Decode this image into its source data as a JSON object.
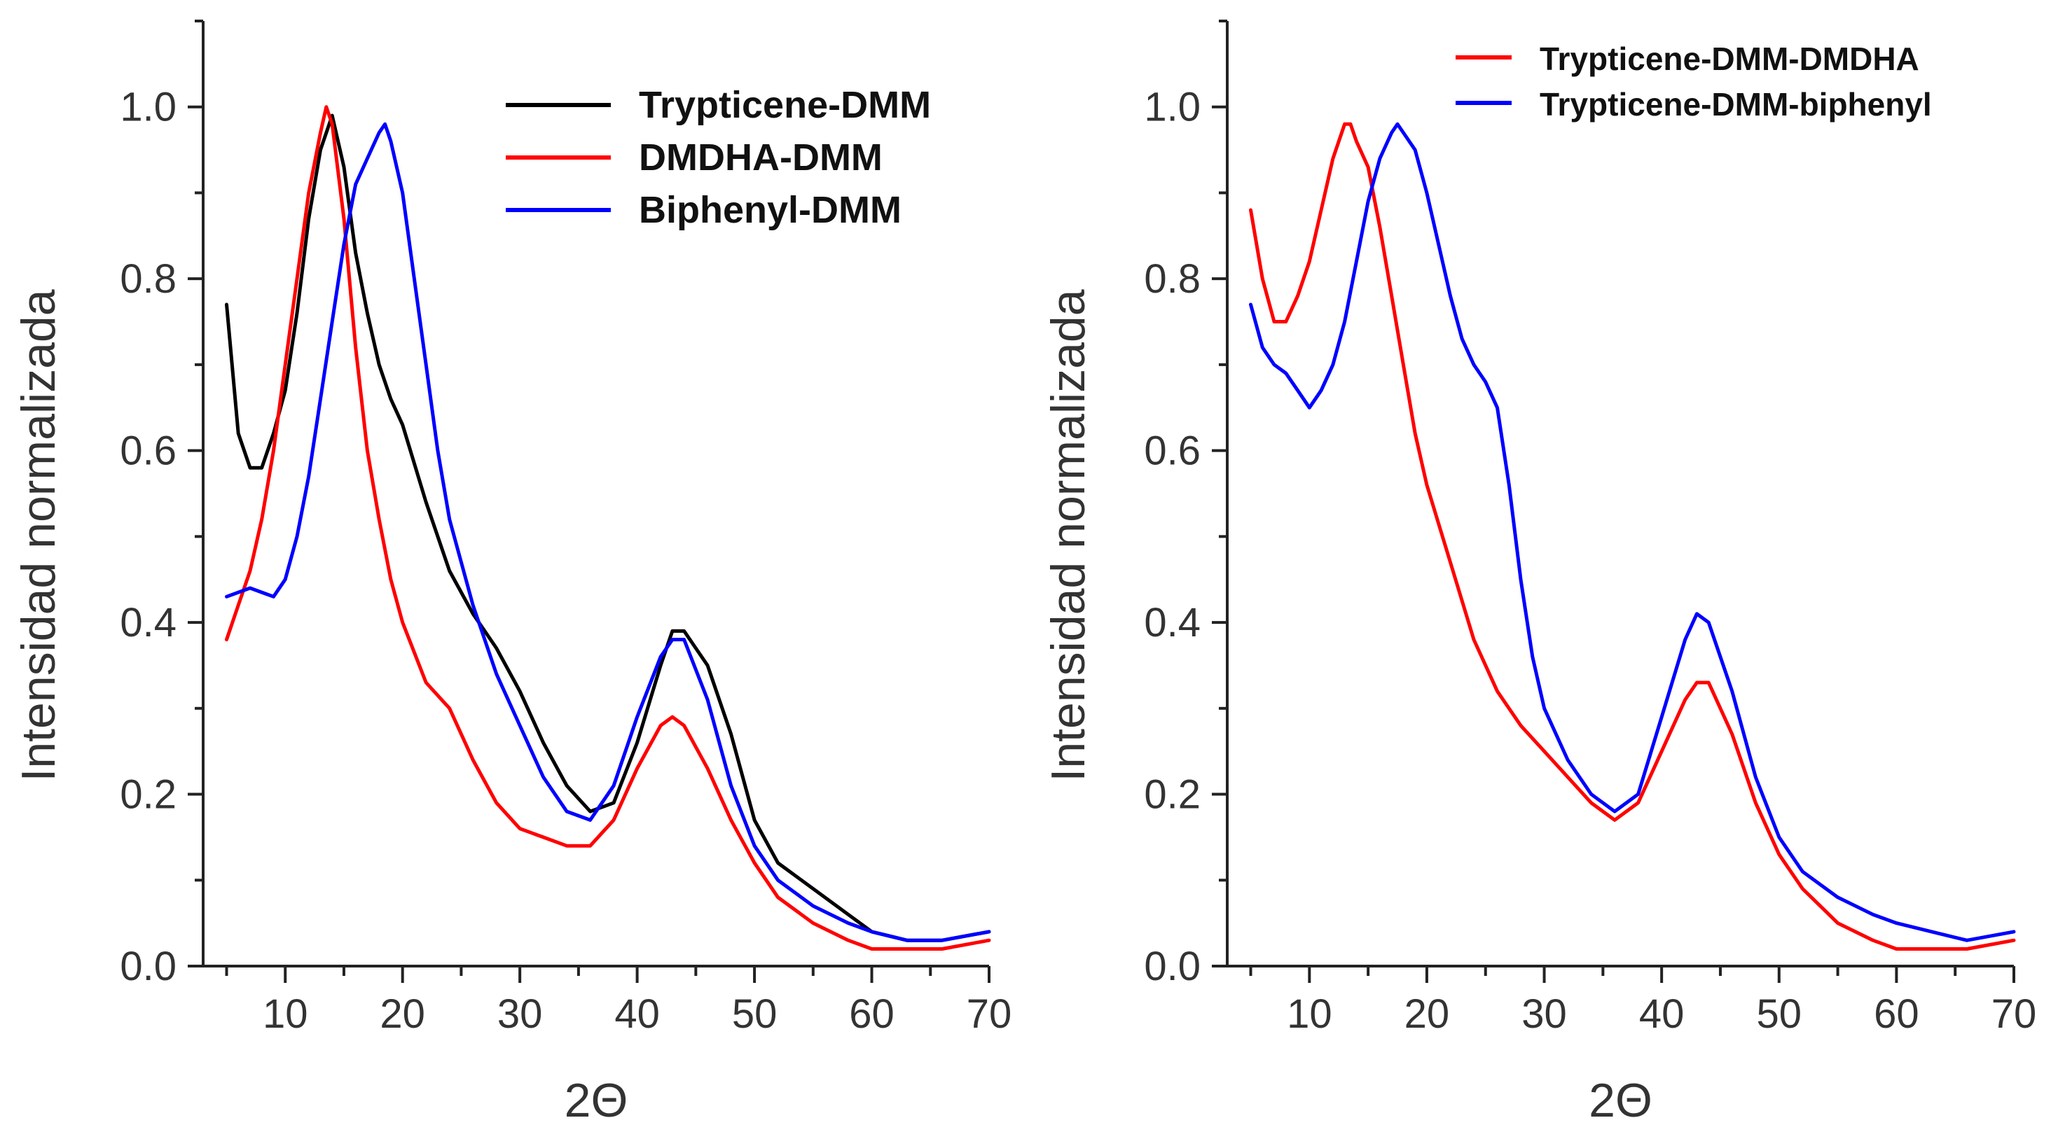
{
  "chart_data": [
    {
      "type": "line",
      "title": "",
      "xlabel": "2Θ",
      "ylabel": "Intensidad normalizada",
      "xlim": [
        3,
        70
      ],
      "ylim": [
        0,
        1.1
      ],
      "xticks": [
        "10",
        "20",
        "30",
        "40",
        "50",
        "60",
        "70"
      ],
      "yticks": [
        "0.0",
        "0.2",
        "0.4",
        "0.6",
        "0.8",
        "1.0"
      ],
      "legend_position": "top-right",
      "series": [
        {
          "name": "Trypticene-DMM",
          "color": "#000000",
          "x": [
            5,
            6,
            7,
            8,
            9,
            10,
            11,
            12,
            13,
            14,
            15,
            16,
            17,
            18,
            19,
            20,
            22,
            24,
            26,
            28,
            30,
            32,
            34,
            36,
            38,
            40,
            42,
            43,
            44,
            46,
            48,
            50,
            52,
            55,
            58,
            60,
            63,
            66,
            70
          ],
          "y": [
            0.77,
            0.62,
            0.58,
            0.58,
            0.62,
            0.67,
            0.76,
            0.87,
            0.95,
            0.99,
            0.93,
            0.83,
            0.76,
            0.7,
            0.66,
            0.63,
            0.54,
            0.46,
            0.41,
            0.37,
            0.32,
            0.26,
            0.21,
            0.18,
            0.19,
            0.26,
            0.35,
            0.39,
            0.39,
            0.35,
            0.27,
            0.17,
            0.12,
            0.09,
            0.06,
            0.04,
            0.03,
            0.03,
            0.04
          ]
        },
        {
          "name": "DMDHA-DMM",
          "color": "#ff0000",
          "x": [
            5,
            6,
            7,
            8,
            9,
            10,
            11,
            12,
            13,
            13.5,
            14,
            15,
            16,
            17,
            18,
            19,
            20,
            22,
            24,
            26,
            28,
            30,
            32,
            34,
            36,
            38,
            40,
            42,
            43,
            44,
            46,
            48,
            50,
            52,
            55,
            58,
            60,
            63,
            66,
            70
          ],
          "y": [
            0.38,
            0.42,
            0.46,
            0.52,
            0.6,
            0.7,
            0.8,
            0.9,
            0.97,
            1.0,
            0.98,
            0.87,
            0.72,
            0.6,
            0.52,
            0.45,
            0.4,
            0.33,
            0.3,
            0.24,
            0.19,
            0.16,
            0.15,
            0.14,
            0.14,
            0.17,
            0.23,
            0.28,
            0.29,
            0.28,
            0.23,
            0.17,
            0.12,
            0.08,
            0.05,
            0.03,
            0.02,
            0.02,
            0.02,
            0.03
          ]
        },
        {
          "name": "Biphenyl-DMM",
          "color": "#0000ff",
          "x": [
            5,
            7,
            9,
            10,
            11,
            12,
            13,
            14,
            15,
            16,
            17,
            18,
            18.5,
            19,
            20,
            21,
            22,
            23,
            24,
            26,
            28,
            30,
            32,
            34,
            36,
            38,
            40,
            42,
            43,
            44,
            46,
            48,
            50,
            52,
            55,
            58,
            60,
            63,
            66,
            70
          ],
          "y": [
            0.43,
            0.44,
            0.43,
            0.45,
            0.5,
            0.57,
            0.66,
            0.75,
            0.84,
            0.91,
            0.94,
            0.97,
            0.98,
            0.96,
            0.9,
            0.8,
            0.7,
            0.6,
            0.52,
            0.42,
            0.34,
            0.28,
            0.22,
            0.18,
            0.17,
            0.21,
            0.29,
            0.36,
            0.38,
            0.38,
            0.31,
            0.21,
            0.14,
            0.1,
            0.07,
            0.05,
            0.04,
            0.03,
            0.03,
            0.04
          ]
        }
      ]
    },
    {
      "type": "line",
      "title": "",
      "xlabel": "2Θ",
      "ylabel": "Intensidad normalizada",
      "xlim": [
        3,
        70
      ],
      "ylim": [
        0,
        1.1
      ],
      "xticks": [
        "10",
        "20",
        "30",
        "40",
        "50",
        "60",
        "70"
      ],
      "yticks": [
        "0.0",
        "0.2",
        "0.4",
        "0.6",
        "0.8",
        "1.0"
      ],
      "legend_position": "top-right",
      "series": [
        {
          "name": "Trypticene-DMM-DMDHA",
          "color": "#ff0000",
          "x": [
            5,
            6,
            7,
            8,
            9,
            10,
            11,
            12,
            13,
            13.5,
            14,
            15,
            16,
            17,
            18,
            19,
            20,
            22,
            24,
            26,
            28,
            30,
            32,
            34,
            36,
            38,
            40,
            42,
            43,
            44,
            46,
            48,
            50,
            52,
            55,
            58,
            60,
            63,
            66,
            70
          ],
          "y": [
            0.88,
            0.8,
            0.75,
            0.75,
            0.78,
            0.82,
            0.88,
            0.94,
            0.98,
            0.98,
            0.96,
            0.93,
            0.86,
            0.78,
            0.7,
            0.62,
            0.56,
            0.47,
            0.38,
            0.32,
            0.28,
            0.25,
            0.22,
            0.19,
            0.17,
            0.19,
            0.25,
            0.31,
            0.33,
            0.33,
            0.27,
            0.19,
            0.13,
            0.09,
            0.05,
            0.03,
            0.02,
            0.02,
            0.02,
            0.03
          ]
        },
        {
          "name": "Trypticene-DMM-biphenyl",
          "color": "#0000ff",
          "x": [
            5,
            6,
            7,
            8,
            9,
            10,
            11,
            12,
            13,
            14,
            15,
            16,
            17,
            17.5,
            18,
            19,
            20,
            21,
            22,
            23,
            24,
            25,
            26,
            27,
            28,
            29,
            30,
            32,
            34,
            36,
            38,
            40,
            42,
            43,
            44,
            46,
            48,
            50,
            52,
            55,
            58,
            60,
            63,
            66,
            70
          ],
          "y": [
            0.77,
            0.72,
            0.7,
            0.69,
            0.67,
            0.65,
            0.67,
            0.7,
            0.75,
            0.82,
            0.89,
            0.94,
            0.97,
            0.98,
            0.97,
            0.95,
            0.9,
            0.84,
            0.78,
            0.73,
            0.7,
            0.68,
            0.65,
            0.56,
            0.45,
            0.36,
            0.3,
            0.24,
            0.2,
            0.18,
            0.2,
            0.29,
            0.38,
            0.41,
            0.4,
            0.32,
            0.22,
            0.15,
            0.11,
            0.08,
            0.06,
            0.05,
            0.04,
            0.03,
            0.04
          ]
        }
      ]
    }
  ]
}
